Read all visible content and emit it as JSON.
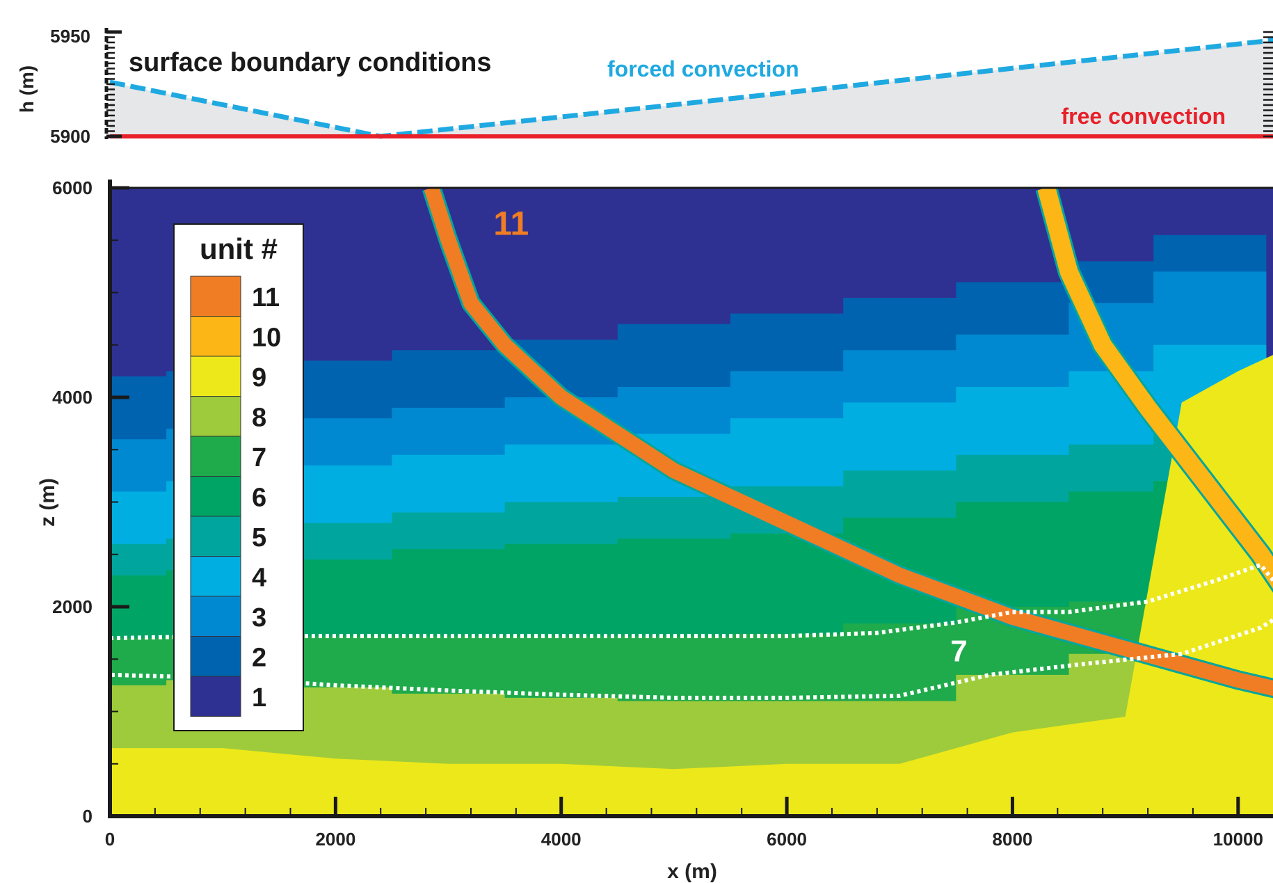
{
  "chart_data": [
    {
      "type": "line",
      "panel": "top",
      "title": "surface boundary conditions",
      "ylabel": "h (m)",
      "ylim": [
        5900,
        5950
      ],
      "yticks": [
        "5950",
        "5900"
      ],
      "x": [
        0,
        2400,
        11000
      ],
      "series": [
        {
          "name": "forced convection",
          "color": "#1fa9e1",
          "style": "dashed",
          "values": [
            5926,
            5900,
            5950
          ]
        },
        {
          "name": "free convection",
          "color": "#e8202a",
          "style": "solid",
          "values": [
            5900,
            5900,
            5900
          ]
        }
      ],
      "fill_color": "#e6e7e8"
    },
    {
      "type": "heatmap",
      "panel": "bottom",
      "xlabel": "x (m)",
      "ylabel": "z (m)",
      "xlim": [
        0,
        11000
      ],
      "ylim": [
        0,
        6000
      ],
      "xticks": [
        "0",
        "2000",
        "4000",
        "6000",
        "8000",
        "10000"
      ],
      "yticks": [
        "0",
        "2000",
        "4000",
        "6000"
      ],
      "legend_title": "unit #",
      "legend_placement": "top-left",
      "units": [
        {
          "unit": "11",
          "color": "#f07d23"
        },
        {
          "unit": "10",
          "color": "#fcb616"
        },
        {
          "unit": "9",
          "color": "#ece81a"
        },
        {
          "unit": "8",
          "color": "#9ecb3b"
        },
        {
          "unit": "7",
          "color": "#1faa4b"
        },
        {
          "unit": "6",
          "color": "#00a464"
        },
        {
          "unit": "5",
          "color": "#00a69d"
        },
        {
          "unit": "4",
          "color": "#00aee2"
        },
        {
          "unit": "3",
          "color": "#0089d0"
        },
        {
          "unit": "2",
          "color": "#0063b0"
        },
        {
          "unit": "1",
          "color": "#2e3192"
        }
      ],
      "boundaries_x": [
        0,
        1000,
        2000,
        3000,
        4000,
        5000,
        6000,
        7000,
        8000,
        9000,
        9500,
        11000
      ],
      "layer_tops": {
        "8": [
          1250,
          1300,
          1230,
          1170,
          1130,
          1100,
          1100,
          1100,
          1350,
          1550,
          1650,
          1100
        ],
        "7": [
          1700,
          1720,
          1720,
          1720,
          1720,
          1720,
          1740,
          1840,
          2000,
          2050,
          2200,
          1100
        ],
        "6": [
          2300,
          2350,
          2450,
          2550,
          2600,
          2650,
          2700,
          2850,
          3000,
          3100,
          3200,
          1100
        ],
        "5": [
          2600,
          2650,
          2800,
          2900,
          3000,
          3050,
          3150,
          3300,
          3450,
          3550,
          3700,
          1100
        ],
        "4": [
          3100,
          3200,
          3350,
          3450,
          3550,
          3650,
          3800,
          3950,
          4100,
          4250,
          4500,
          1100
        ],
        "3": [
          3600,
          3700,
          3800,
          3900,
          4000,
          4100,
          4250,
          4450,
          4600,
          4900,
          5200,
          1100
        ],
        "2": [
          4200,
          4250,
          4350,
          4450,
          4550,
          4700,
          4800,
          4950,
          5100,
          5300,
          5550,
          1100
        ]
      },
      "unit9_top_x": [
        0,
        1000,
        2000,
        3000,
        4000,
        5000,
        6000,
        7000,
        8000,
        9000,
        9500,
        10000,
        10500,
        11000
      ],
      "unit9_top_z": [
        650,
        650,
        550,
        500,
        500,
        450,
        500,
        500,
        800,
        950,
        3950,
        4250,
        4500,
        4550
      ],
      "fault_11": {
        "x": [
          2850,
          3000,
          3200,
          3500,
          4000,
          5000,
          6000,
          7000,
          8000,
          9000,
          10000,
          11000
        ],
        "z": [
          6000,
          5500,
          4900,
          4500,
          4000,
          3300,
          2800,
          2300,
          1900,
          1600,
          1300,
          1050
        ]
      },
      "fault_10": {
        "x": [
          8300,
          8500,
          8800,
          9200,
          9700,
          10200,
          10700,
          11000
        ],
        "z": [
          6000,
          5200,
          4500,
          3900,
          3200,
          2500,
          1700,
          1500
        ]
      },
      "unit7_outline": {
        "x": [
          0,
          1000,
          2000,
          3000,
          4000,
          5000,
          6000,
          6800,
          7500,
          8000,
          8500,
          9200,
          9800,
          10200,
          10500,
          10200,
          9500,
          8600,
          7800,
          7000,
          6000,
          5000,
          4000,
          3000,
          2000,
          1000,
          0,
          0
        ],
        "z": [
          1700,
          1720,
          1720,
          1720,
          1720,
          1720,
          1720,
          1750,
          1850,
          1950,
          1950,
          2050,
          2250,
          2400,
          2000,
          1800,
          1550,
          1450,
          1350,
          1150,
          1130,
          1130,
          1160,
          1200,
          1250,
          1320,
          1350,
          1700
        ]
      },
      "annotations": [
        {
          "text": "11",
          "x": 3400,
          "z": 5550,
          "color": "#f07d23"
        },
        {
          "text": "7",
          "x": 7450,
          "z": 1480,
          "color": "#ffffff"
        }
      ]
    }
  ]
}
